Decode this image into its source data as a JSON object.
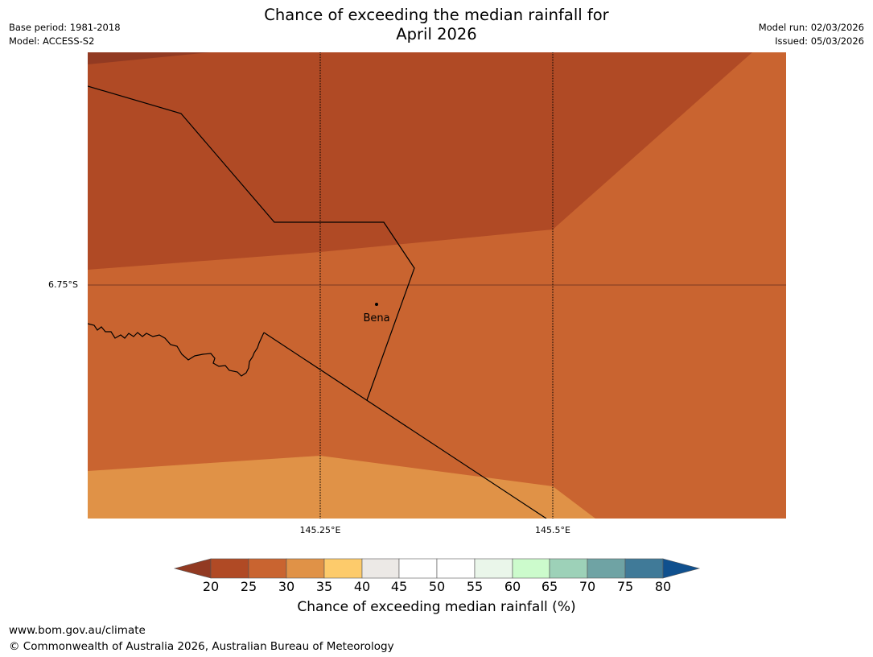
{
  "header": {
    "title_line1": "Chance of exceeding the median rainfall for",
    "title_line2": "April 2026",
    "base_period": "Base period: 1981-2018",
    "model": "Model: ACCESS-S2",
    "model_run": "Model run: 02/03/2026",
    "issued": "Issued: 05/03/2026"
  },
  "map": {
    "lat_label": "6.75°S",
    "lon_labels": [
      "145.25°E",
      "145.5°E"
    ],
    "place_name": "Bena"
  },
  "colors": {
    "lt20": "#923a22",
    "c20_25": "#b04a25",
    "c25_30": "#c96430",
    "c30_35": "#e09247",
    "c35_40": "#fdcb6b",
    "c40_45": "#ece9e6",
    "c45_55": "#ffffff",
    "c55_60": "#eaf6ea",
    "c60_65": "#ccfbcc",
    "c65_70": "#9dd1b8",
    "c70_75": "#6fa3a4",
    "c75_80": "#407a98",
    "gt80": "#10508e"
  },
  "colorbar": {
    "ticks": [
      "20",
      "25",
      "30",
      "35",
      "40",
      "45",
      "50",
      "55",
      "60",
      "65",
      "70",
      "75",
      "80"
    ],
    "title": "Chance of exceeding median rainfall (%)"
  },
  "footer": {
    "url": "www.bom.gov.au/climate",
    "copyright": "© Commonwealth of Australia 2026, Australian Bureau of Meteorology"
  }
}
